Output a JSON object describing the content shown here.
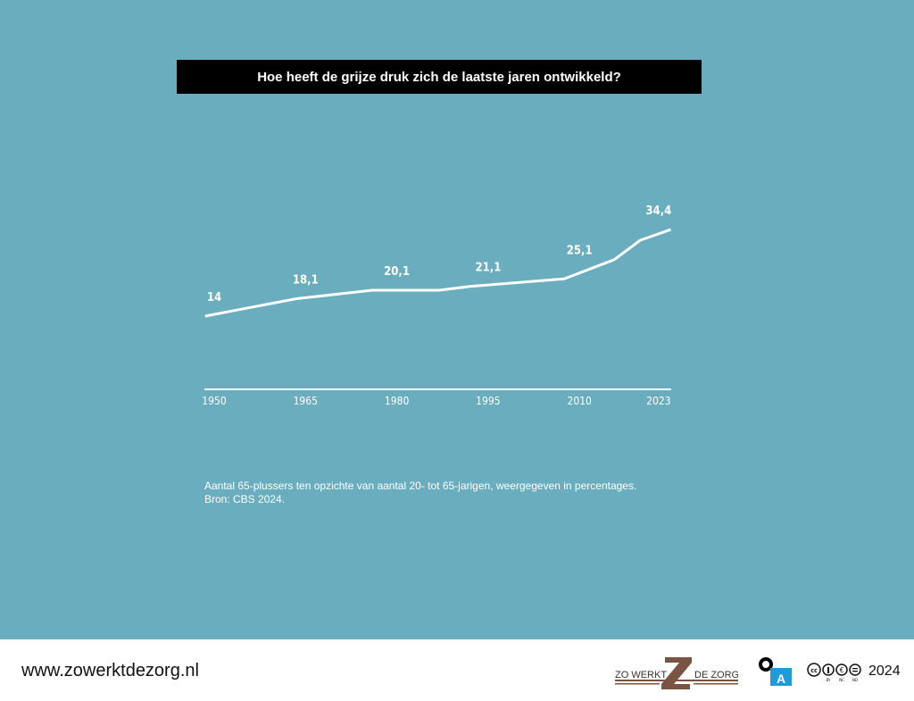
{
  "colors": {
    "background": "#6aadbe",
    "line": "#ffffff",
    "title_bg": "#000000",
    "logo_brown": "#7a5443",
    "oa_blue": "#1f9bd9"
  },
  "chart_data": {
    "type": "line",
    "title": "Hoe heeft de grijze druk zich de laatste jaren ontwikkeld?",
    "xlabel": "",
    "ylabel": "",
    "xlim": [
      1948.5,
      2025
    ],
    "ylim": [
      0,
      40
    ],
    "grid": false,
    "x_ticks": [
      "1950",
      "1965",
      "1980",
      "1995",
      "2010",
      "2023"
    ],
    "series": [
      {
        "points": [
          [
            1948.5,
            14
          ],
          [
            1963.5,
            18.1
          ],
          [
            1976,
            20.1
          ],
          [
            1987,
            20.1
          ],
          [
            1992,
            21.0
          ],
          [
            2007.5,
            22.8
          ],
          [
            2015.7,
            27.3
          ],
          [
            2020,
            31.9
          ],
          [
            2025,
            34.4
          ]
        ]
      }
    ],
    "data_labels": [
      {
        "x": 1950,
        "value": 14,
        "label": "14"
      },
      {
        "x": 1965,
        "value": 18.1,
        "label": "18,1"
      },
      {
        "x": 1980,
        "value": 20.1,
        "label": "20,1"
      },
      {
        "x": 1995,
        "value": 21.1,
        "label": "21,1"
      },
      {
        "x": 2010,
        "value": 25.1,
        "label": "25,1"
      },
      {
        "x": 2023,
        "value": 34.4,
        "label": "34,4"
      }
    ]
  },
  "note": {
    "line1": "Aantal 65-plussers ten opzichte van aantal 20- tot 65-jarigen, weergegeven in percentages.",
    "line2": "Bron: CBS 2024."
  },
  "footer": {
    "url": "www.zowerktdezorg.nl",
    "logo_left": "ZO WERKT",
    "logo_right": "DE ZORG",
    "oa_letter": "A",
    "license_icons": [
      "cc-icon",
      "by-icon",
      "nc-icon",
      "nd-icon"
    ],
    "license_labels": [
      "BY",
      "NC",
      "ND"
    ],
    "year": "2024"
  }
}
